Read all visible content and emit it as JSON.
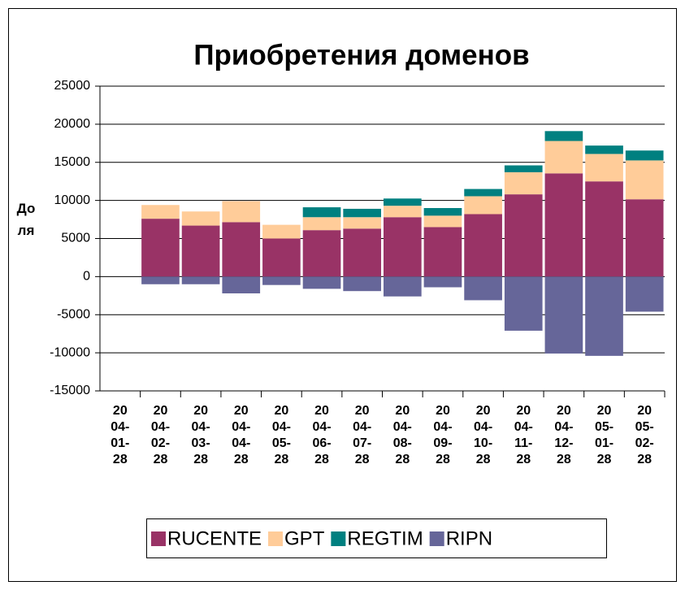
{
  "chart_data": {
    "type": "stacked_bar",
    "title": "Приобретения доменов",
    "y_label": "Доля",
    "categories": [
      "2004-01-28",
      "2004-02-28",
      "2004-03-28",
      "2004-04-28",
      "2004-05-28",
      "2004-06-28",
      "2004-07-28",
      "2004-08-28",
      "2004-09-28",
      "2004-10-28",
      "2004-11-28",
      "2004-12-28",
      "2005-01-28",
      "2005-02-28"
    ],
    "series": [
      {
        "name": "RUCENTE",
        "color": "#993366",
        "values": [
          null,
          7600,
          6700,
          7150,
          5000,
          6100,
          6300,
          7800,
          6500,
          8200,
          10800,
          13550,
          12500,
          10150
        ]
      },
      {
        "name": "GPT",
        "color": "#FFCC99",
        "values": [
          null,
          1800,
          1850,
          2750,
          1800,
          1700,
          1500,
          1500,
          1500,
          2350,
          2900,
          4250,
          3600,
          5100
        ]
      },
      {
        "name": "REGTIM",
        "color": "#008080",
        "values": [
          null,
          0,
          0,
          0,
          0,
          1300,
          1100,
          950,
          1000,
          950,
          900,
          1300,
          1100,
          1300
        ]
      },
      {
        "name": "RIPN",
        "color": "#666699",
        "values": [
          null,
          -1000,
          -1000,
          -2200,
          -1100,
          -1600,
          -1900,
          -2600,
          -1400,
          -3100,
          -7100,
          -10100,
          -10400,
          -4600
        ]
      }
    ],
    "ylim": [
      -15000,
      25000
    ],
    "yticks": [
      -15000,
      -10000,
      -5000,
      0,
      5000,
      10000,
      15000,
      20000,
      25000
    ],
    "grid": true,
    "legend": "bottom"
  }
}
